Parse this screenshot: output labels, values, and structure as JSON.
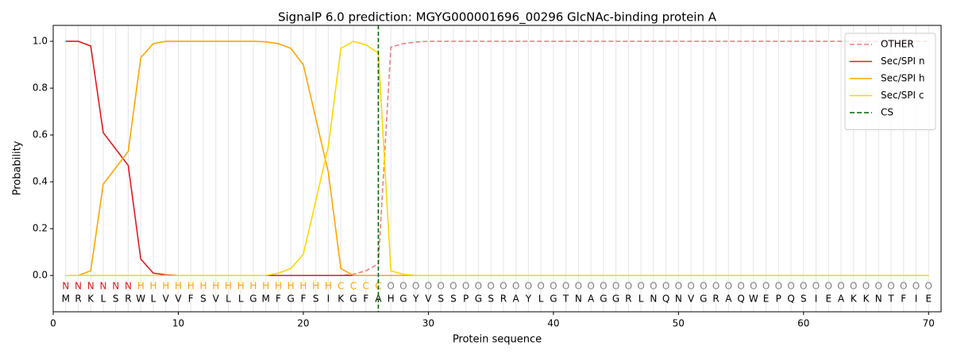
{
  "chart_data": {
    "type": "line",
    "title": "SignalP 6.0 prediction: MGYG000001696_00296 GlcNAc-binding protein A",
    "x_label": "Protein sequence",
    "y_label": "Probability",
    "x": [
      1,
      2,
      3,
      4,
      5,
      6,
      7,
      8,
      9,
      10,
      11,
      12,
      13,
      14,
      15,
      16,
      17,
      18,
      19,
      20,
      21,
      22,
      23,
      24,
      25,
      26,
      27,
      28,
      29,
      30,
      31,
      32,
      33,
      34,
      35,
      36,
      37,
      38,
      39,
      40,
      41,
      42,
      43,
      44,
      45,
      46,
      47,
      48,
      49,
      50,
      51,
      52,
      53,
      54,
      55,
      56,
      57,
      58,
      59,
      60,
      61,
      62,
      63,
      64,
      65,
      66,
      67,
      68,
      69,
      70
    ],
    "xlim": [
      0,
      71
    ],
    "xticks": [
      0,
      10,
      20,
      30,
      40,
      50,
      60,
      70
    ],
    "ylim": [
      -0.155,
      1.068
    ],
    "yticks": [
      {
        "value": 0,
        "label": "0.0"
      },
      {
        "value": 0.2,
        "label": "0.2"
      },
      {
        "value": 0.4,
        "label": "0.4"
      },
      {
        "value": 0.6,
        "label": "0.6"
      },
      {
        "value": 0.8,
        "label": "0.8"
      },
      {
        "value": 1.0,
        "label": "1.0"
      }
    ],
    "grid": true,
    "legend": "upper right",
    "series": [
      {
        "name": "OTHER",
        "color": "#f08080",
        "dashed": true,
        "values": [
          0,
          0,
          0,
          0,
          0,
          0,
          0,
          0,
          0,
          0,
          0,
          0,
          0,
          0,
          0,
          0,
          0,
          0,
          0,
          0,
          0,
          0,
          0,
          0.005,
          0.02,
          0.05,
          0.975,
          0.99,
          0.997,
          1,
          1,
          1,
          1,
          1,
          1,
          1,
          1,
          1,
          1,
          1,
          1,
          1,
          1,
          1,
          1,
          1,
          1,
          1,
          1,
          1,
          1,
          1,
          1,
          1,
          1,
          1,
          1,
          1,
          1,
          1,
          1,
          1,
          1,
          1,
          1,
          1,
          1,
          1,
          1,
          1
        ]
      },
      {
        "name": "Sec/SPI n",
        "color": "#e31a1c",
        "dashed": false,
        "values": [
          1.0,
          1.0,
          0.98,
          0.61,
          0.54,
          0.47,
          0.07,
          0.01,
          0.003,
          0,
          0,
          0,
          0,
          0,
          0,
          0,
          0,
          0,
          0,
          0,
          0,
          0,
          0,
          0,
          0,
          0,
          0,
          0,
          0,
          0,
          0,
          0,
          0,
          0,
          0,
          0,
          0,
          0,
          0,
          0,
          0,
          0,
          0,
          0,
          0,
          0,
          0,
          0,
          0,
          0,
          0,
          0,
          0,
          0,
          0,
          0,
          0,
          0,
          0,
          0,
          0,
          0,
          0,
          0,
          0,
          0,
          0,
          0,
          0,
          0
        ]
      },
      {
        "name": "Sec/SPI h",
        "color": "#ffa500",
        "dashed": false,
        "values": [
          0,
          0,
          0.02,
          0.39,
          0.46,
          0.53,
          0.93,
          0.99,
          1.0,
          1,
          1,
          1,
          1,
          1,
          1,
          1,
          0.998,
          0.99,
          0.97,
          0.9,
          0.67,
          0.44,
          0.03,
          0,
          0,
          0,
          0,
          0,
          0,
          0,
          0,
          0,
          0,
          0,
          0,
          0,
          0,
          0,
          0,
          0,
          0,
          0,
          0,
          0,
          0,
          0,
          0,
          0,
          0,
          0,
          0,
          0,
          0,
          0,
          0,
          0,
          0,
          0,
          0,
          0,
          0,
          0,
          0,
          0,
          0,
          0,
          0,
          0,
          0,
          0
        ]
      },
      {
        "name": "Sec/SPI c",
        "color": "#ffd700",
        "dashed": false,
        "values": [
          0,
          0,
          0,
          0,
          0,
          0,
          0,
          0,
          0,
          0,
          0,
          0,
          0,
          0,
          0,
          0,
          0,
          0.01,
          0.03,
          0.09,
          0.32,
          0.55,
          0.97,
          1.0,
          0.985,
          0.95,
          0.02,
          0.005,
          0,
          0,
          0,
          0,
          0,
          0,
          0,
          0,
          0,
          0,
          0,
          0,
          0,
          0,
          0,
          0,
          0,
          0,
          0,
          0,
          0,
          0,
          0,
          0,
          0,
          0,
          0,
          0,
          0,
          0,
          0,
          0,
          0,
          0,
          0,
          0,
          0,
          0,
          0,
          0,
          0,
          0
        ]
      }
    ],
    "cs": {
      "name": "CS",
      "color": "#006400",
      "x": 26
    },
    "region_labels": [
      "N",
      "N",
      "N",
      "N",
      "N",
      "N",
      "H",
      "H",
      "H",
      "H",
      "H",
      "H",
      "H",
      "H",
      "H",
      "H",
      "H",
      "H",
      "H",
      "H",
      "H",
      "H",
      "C",
      "C",
      "C",
      "C",
      "O",
      "O",
      "O",
      "O",
      "O",
      "O",
      "O",
      "O",
      "O",
      "O",
      "O",
      "O",
      "O",
      "O",
      "O",
      "O",
      "O",
      "O",
      "O",
      "O",
      "O",
      "O",
      "O",
      "O",
      "O",
      "O",
      "O",
      "O",
      "O",
      "O",
      "O",
      "O",
      "O",
      "O",
      "O",
      "O",
      "O",
      "O",
      "O",
      "O",
      "O",
      "O",
      "O",
      "O"
    ],
    "region_colors": {
      "N": "#e31a1c",
      "H": "#ffa500",
      "C": "#ffa500",
      "O": "#808080"
    },
    "residues": [
      "M",
      "R",
      "K",
      "L",
      "S",
      "R",
      "W",
      "L",
      "V",
      "V",
      "F",
      "S",
      "V",
      "L",
      "L",
      "G",
      "M",
      "F",
      "G",
      "F",
      "S",
      "I",
      "K",
      "G",
      "F",
      "A",
      "H",
      "G",
      "Y",
      "V",
      "S",
      "S",
      "P",
      "G",
      "S",
      "R",
      "A",
      "Y",
      "L",
      "G",
      "T",
      "N",
      "A",
      "G",
      "G",
      "R",
      "L",
      "N",
      "Q",
      "N",
      "V",
      "G",
      "R",
      "A",
      "Q",
      "W",
      "E",
      "P",
      "Q",
      "S",
      "I",
      "E",
      "A",
      "K",
      "K",
      "N",
      "T",
      "F",
      "I",
      "E"
    ]
  }
}
